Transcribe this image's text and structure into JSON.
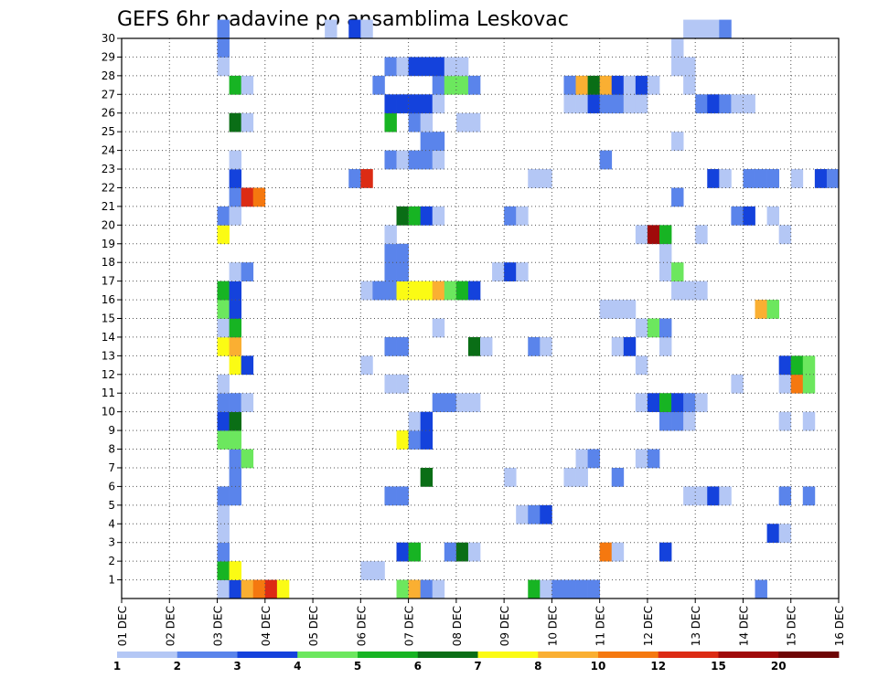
{
  "chart_data": {
    "type": "heatmap",
    "title": "GEFS 6hr padavine po ansamblima Leskovac",
    "xlabel": "",
    "ylabel": "",
    "x_ticks": [
      "01 DEC",
      "02 DEC",
      "03 DEC",
      "04 DEC",
      "05 DEC",
      "06 DEC",
      "07 DEC",
      "08 DEC",
      "09 DEC",
      "10 DEC",
      "11 DEC",
      "12 DEC",
      "13 DEC",
      "14 DEC",
      "15 DEC",
      "16 DEC"
    ],
    "x_unit": "6-hour step index (0 = 01 DEC 00Z, 4 steps per day)",
    "xlim": [
      0,
      60
    ],
    "y_ticks": [
      "1",
      "2",
      "3",
      "4",
      "5",
      "6",
      "7",
      "8",
      "9",
      "10",
      "11",
      "12",
      "13",
      "14",
      "15",
      "16",
      "17",
      "18",
      "19",
      "20",
      "21",
      "22",
      "23",
      "24",
      "25",
      "26",
      "27",
      "28",
      "29",
      "30"
    ],
    "ylim": [
      0,
      30
    ],
    "grid": true,
    "colorbar": {
      "levels": [
        1,
        2,
        3,
        4,
        5,
        6,
        7,
        8,
        10,
        12,
        15,
        20
      ],
      "labels": [
        "1",
        "2",
        "3",
        "4",
        "5",
        "6",
        "7",
        "8",
        "10",
        "12",
        "15",
        "20"
      ],
      "colors": [
        "#b4c7f5",
        "#5a84eb",
        "#1442dc",
        "#6ce75e",
        "#17b423",
        "#0a6e16",
        "#fbfb14",
        "#faaf32",
        "#f5780f",
        "#dc2b14",
        "#a00a0a",
        "#6e0505"
      ]
    },
    "cells_description": "each cell is [step, member, class]; class k = precipitation between levels[k] and levels[k+1] (class 11 = above 20)",
    "cells": [
      [
        8,
        0,
        0
      ],
      [
        9,
        0,
        2
      ],
      [
        10,
        0,
        7
      ],
      [
        11,
        0,
        8
      ],
      [
        12,
        0,
        9
      ],
      [
        13,
        0,
        6
      ],
      [
        23,
        0,
        3
      ],
      [
        24,
        0,
        7
      ],
      [
        25,
        0,
        1
      ],
      [
        26,
        0,
        0
      ],
      [
        34,
        0,
        4
      ],
      [
        35,
        0,
        0
      ],
      [
        36,
        0,
        1
      ],
      [
        37,
        0,
        1
      ],
      [
        38,
        0,
        1
      ],
      [
        39,
        0,
        1
      ],
      [
        53,
        0,
        1
      ],
      [
        8,
        1,
        4
      ],
      [
        9,
        1,
        6
      ],
      [
        20,
        1,
        0
      ],
      [
        21,
        1,
        0
      ],
      [
        8,
        2,
        1
      ],
      [
        23,
        2,
        2
      ],
      [
        24,
        2,
        4
      ],
      [
        27,
        2,
        1
      ],
      [
        28,
        2,
        5
      ],
      [
        29,
        2,
        0
      ],
      [
        40,
        2,
        8
      ],
      [
        41,
        2,
        0
      ],
      [
        45,
        2,
        2
      ],
      [
        8,
        3,
        0
      ],
      [
        54,
        3,
        2
      ],
      [
        55,
        3,
        0
      ],
      [
        8,
        4,
        0
      ],
      [
        33,
        4,
        0
      ],
      [
        34,
        4,
        1
      ],
      [
        35,
        4,
        2
      ],
      [
        8,
        5,
        1
      ],
      [
        9,
        5,
        1
      ],
      [
        22,
        5,
        1
      ],
      [
        23,
        5,
        1
      ],
      [
        47,
        5,
        0
      ],
      [
        48,
        5,
        0
      ],
      [
        49,
        5,
        2
      ],
      [
        50,
        5,
        0
      ],
      [
        55,
        5,
        1
      ],
      [
        57,
        5,
        1
      ],
      [
        9,
        6,
        1
      ],
      [
        25,
        6,
        5
      ],
      [
        32,
        6,
        0
      ],
      [
        37,
        6,
        0
      ],
      [
        38,
        6,
        0
      ],
      [
        41,
        6,
        1
      ],
      [
        9,
        7,
        1
      ],
      [
        10,
        7,
        3
      ],
      [
        38,
        7,
        0
      ],
      [
        39,
        7,
        1
      ],
      [
        43,
        7,
        0
      ],
      [
        44,
        7,
        1
      ],
      [
        8,
        8,
        3
      ],
      [
        9,
        8,
        3
      ],
      [
        23,
        8,
        6
      ],
      [
        24,
        8,
        1
      ],
      [
        25,
        8,
        2
      ],
      [
        8,
        9,
        2
      ],
      [
        9,
        9,
        5
      ],
      [
        24,
        9,
        0
      ],
      [
        25,
        9,
        2
      ],
      [
        45,
        9,
        1
      ],
      [
        46,
        9,
        1
      ],
      [
        47,
        9,
        0
      ],
      [
        55,
        9,
        0
      ],
      [
        57,
        9,
        0
      ],
      [
        8,
        10,
        1
      ],
      [
        9,
        10,
        1
      ],
      [
        10,
        10,
        0
      ],
      [
        26,
        10,
        1
      ],
      [
        27,
        10,
        1
      ],
      [
        28,
        10,
        0
      ],
      [
        29,
        10,
        0
      ],
      [
        43,
        10,
        0
      ],
      [
        44,
        10,
        2
      ],
      [
        45,
        10,
        4
      ],
      [
        46,
        10,
        2
      ],
      [
        47,
        10,
        1
      ],
      [
        48,
        10,
        0
      ],
      [
        8,
        11,
        0
      ],
      [
        22,
        11,
        0
      ],
      [
        23,
        11,
        0
      ],
      [
        51,
        11,
        0
      ],
      [
        55,
        11,
        0
      ],
      [
        56,
        11,
        8
      ],
      [
        57,
        11,
        3
      ],
      [
        9,
        12,
        6
      ],
      [
        10,
        12,
        2
      ],
      [
        20,
        12,
        0
      ],
      [
        43,
        12,
        0
      ],
      [
        55,
        12,
        2
      ],
      [
        56,
        12,
        4
      ],
      [
        57,
        12,
        3
      ],
      [
        8,
        13,
        6
      ],
      [
        9,
        13,
        7
      ],
      [
        22,
        13,
        1
      ],
      [
        23,
        13,
        1
      ],
      [
        29,
        13,
        5
      ],
      [
        30,
        13,
        0
      ],
      [
        34,
        13,
        1
      ],
      [
        35,
        13,
        0
      ],
      [
        41,
        13,
        0
      ],
      [
        42,
        13,
        2
      ],
      [
        45,
        13,
        0
      ],
      [
        8,
        14,
        0
      ],
      [
        9,
        14,
        4
      ],
      [
        26,
        14,
        0
      ],
      [
        43,
        14,
        0
      ],
      [
        44,
        14,
        3
      ],
      [
        45,
        14,
        1
      ],
      [
        8,
        15,
        3
      ],
      [
        9,
        15,
        2
      ],
      [
        40,
        15,
        0
      ],
      [
        41,
        15,
        0
      ],
      [
        42,
        15,
        0
      ],
      [
        53,
        15,
        7
      ],
      [
        54,
        15,
        3
      ],
      [
        8,
        16,
        4
      ],
      [
        9,
        16,
        2
      ],
      [
        20,
        16,
        0
      ],
      [
        21,
        16,
        1
      ],
      [
        22,
        16,
        1
      ],
      [
        23,
        16,
        6
      ],
      [
        24,
        16,
        6
      ],
      [
        25,
        16,
        6
      ],
      [
        26,
        16,
        7
      ],
      [
        27,
        16,
        3
      ],
      [
        28,
        16,
        4
      ],
      [
        29,
        16,
        2
      ],
      [
        46,
        16,
        0
      ],
      [
        47,
        16,
        0
      ],
      [
        48,
        16,
        0
      ],
      [
        9,
        17,
        0
      ],
      [
        10,
        17,
        1
      ],
      [
        22,
        17,
        1
      ],
      [
        23,
        17,
        1
      ],
      [
        31,
        17,
        0
      ],
      [
        32,
        17,
        2
      ],
      [
        33,
        17,
        0
      ],
      [
        45,
        17,
        0
      ],
      [
        46,
        17,
        3
      ],
      [
        22,
        18,
        1
      ],
      [
        23,
        18,
        1
      ],
      [
        45,
        18,
        0
      ],
      [
        8,
        19,
        6
      ],
      [
        22,
        19,
        0
      ],
      [
        43,
        19,
        0
      ],
      [
        44,
        19,
        10
      ],
      [
        45,
        19,
        4
      ],
      [
        48,
        19,
        0
      ],
      [
        55,
        19,
        0
      ],
      [
        8,
        20,
        1
      ],
      [
        9,
        20,
        0
      ],
      [
        23,
        20,
        5
      ],
      [
        24,
        20,
        4
      ],
      [
        25,
        20,
        2
      ],
      [
        26,
        20,
        0
      ],
      [
        32,
        20,
        1
      ],
      [
        33,
        20,
        0
      ],
      [
        51,
        20,
        1
      ],
      [
        52,
        20,
        2
      ],
      [
        54,
        20,
        0
      ],
      [
        9,
        21,
        1
      ],
      [
        10,
        21,
        9
      ],
      [
        11,
        21,
        8
      ],
      [
        46,
        21,
        1
      ],
      [
        9,
        22,
        2
      ],
      [
        19,
        22,
        1
      ],
      [
        20,
        22,
        9
      ],
      [
        34,
        22,
        0
      ],
      [
        35,
        22,
        0
      ],
      [
        49,
        22,
        2
      ],
      [
        50,
        22,
        0
      ],
      [
        52,
        22,
        1
      ],
      [
        53,
        22,
        1
      ],
      [
        54,
        22,
        1
      ],
      [
        56,
        22,
        0
      ],
      [
        58,
        22,
        2
      ],
      [
        59,
        22,
        1
      ],
      [
        9,
        23,
        0
      ],
      [
        22,
        23,
        1
      ],
      [
        23,
        23,
        0
      ],
      [
        24,
        23,
        1
      ],
      [
        25,
        23,
        1
      ],
      [
        26,
        23,
        0
      ],
      [
        40,
        23,
        1
      ],
      [
        25,
        24,
        1
      ],
      [
        26,
        24,
        1
      ],
      [
        46,
        24,
        0
      ],
      [
        9,
        25,
        5
      ],
      [
        10,
        25,
        0
      ],
      [
        22,
        25,
        4
      ],
      [
        24,
        25,
        1
      ],
      [
        25,
        25,
        0
      ],
      [
        28,
        25,
        0
      ],
      [
        29,
        25,
        0
      ],
      [
        22,
        26,
        2
      ],
      [
        23,
        26,
        2
      ],
      [
        24,
        26,
        2
      ],
      [
        25,
        26,
        2
      ],
      [
        26,
        26,
        0
      ],
      [
        37,
        26,
        0
      ],
      [
        38,
        26,
        0
      ],
      [
        39,
        26,
        2
      ],
      [
        40,
        26,
        1
      ],
      [
        41,
        26,
        1
      ],
      [
        42,
        26,
        0
      ],
      [
        43,
        26,
        0
      ],
      [
        48,
        26,
        1
      ],
      [
        49,
        26,
        2
      ],
      [
        50,
        26,
        1
      ],
      [
        51,
        26,
        0
      ],
      [
        52,
        26,
        0
      ],
      [
        9,
        27,
        4
      ],
      [
        10,
        27,
        0
      ],
      [
        21,
        27,
        1
      ],
      [
        26,
        27,
        1
      ],
      [
        27,
        27,
        3
      ],
      [
        28,
        27,
        3
      ],
      [
        29,
        27,
        1
      ],
      [
        37,
        27,
        1
      ],
      [
        38,
        27,
        7
      ],
      [
        39,
        27,
        5
      ],
      [
        40,
        27,
        7
      ],
      [
        41,
        27,
        2
      ],
      [
        42,
        27,
        0
      ],
      [
        43,
        27,
        2
      ],
      [
        44,
        27,
        0
      ],
      [
        47,
        27,
        0
      ],
      [
        8,
        28,
        0
      ],
      [
        22,
        28,
        1
      ],
      [
        23,
        28,
        0
      ],
      [
        24,
        28,
        2
      ],
      [
        25,
        28,
        2
      ],
      [
        26,
        28,
        2
      ],
      [
        27,
        28,
        0
      ],
      [
        28,
        28,
        0
      ],
      [
        46,
        28,
        0
      ],
      [
        47,
        28,
        0
      ],
      [
        8,
        29,
        1
      ],
      [
        46,
        29,
        0
      ],
      [
        8,
        30,
        1
      ],
      [
        17,
        30,
        0
      ],
      [
        19,
        30,
        2
      ],
      [
        20,
        30,
        0
      ],
      [
        47,
        30,
        0
      ],
      [
        48,
        30,
        0
      ],
      [
        49,
        30,
        0
      ],
      [
        50,
        30,
        1
      ]
    ]
  }
}
